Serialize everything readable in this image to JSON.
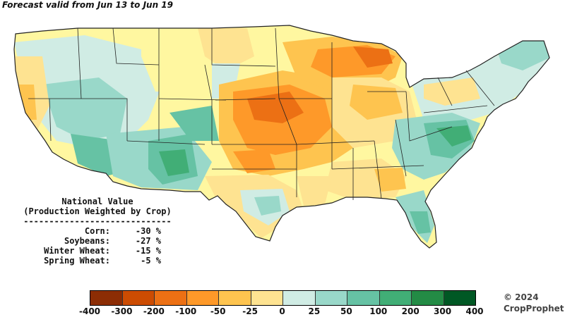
{
  "title": "Forecast valid from Jun 13 to Jun 19",
  "national_value": {
    "heading_line1": "National Value",
    "heading_line2": "(Production Weighted by Crop)",
    "rule": "-----------------------------",
    "rows": [
      {
        "crop": "Corn:",
        "value": "-30 %"
      },
      {
        "crop": "Soybeans:",
        "value": "-27 %"
      },
      {
        "crop": "Winter Wheat:",
        "value": "-15 %"
      },
      {
        "crop": "Spring Wheat:",
        "value": "-5 %"
      }
    ]
  },
  "legend": {
    "ticks": [
      "-400",
      "-300",
      "-200",
      "-100",
      "-50",
      "-25",
      "0",
      "25",
      "50",
      "100",
      "200",
      "300",
      "400"
    ],
    "colors": [
      "#8c2d04",
      "#cc4c02",
      "#ec7014",
      "#fe9929",
      "#fec44f",
      "#fee391",
      "#fff7a0",
      "#d0ece4",
      "#99d8c9",
      "#66c2a4",
      "#41ae76",
      "#238b45",
      "#005824"
    ]
  },
  "copyright_line1": "© 2024",
  "copyright_line2": "CropProphet"
}
